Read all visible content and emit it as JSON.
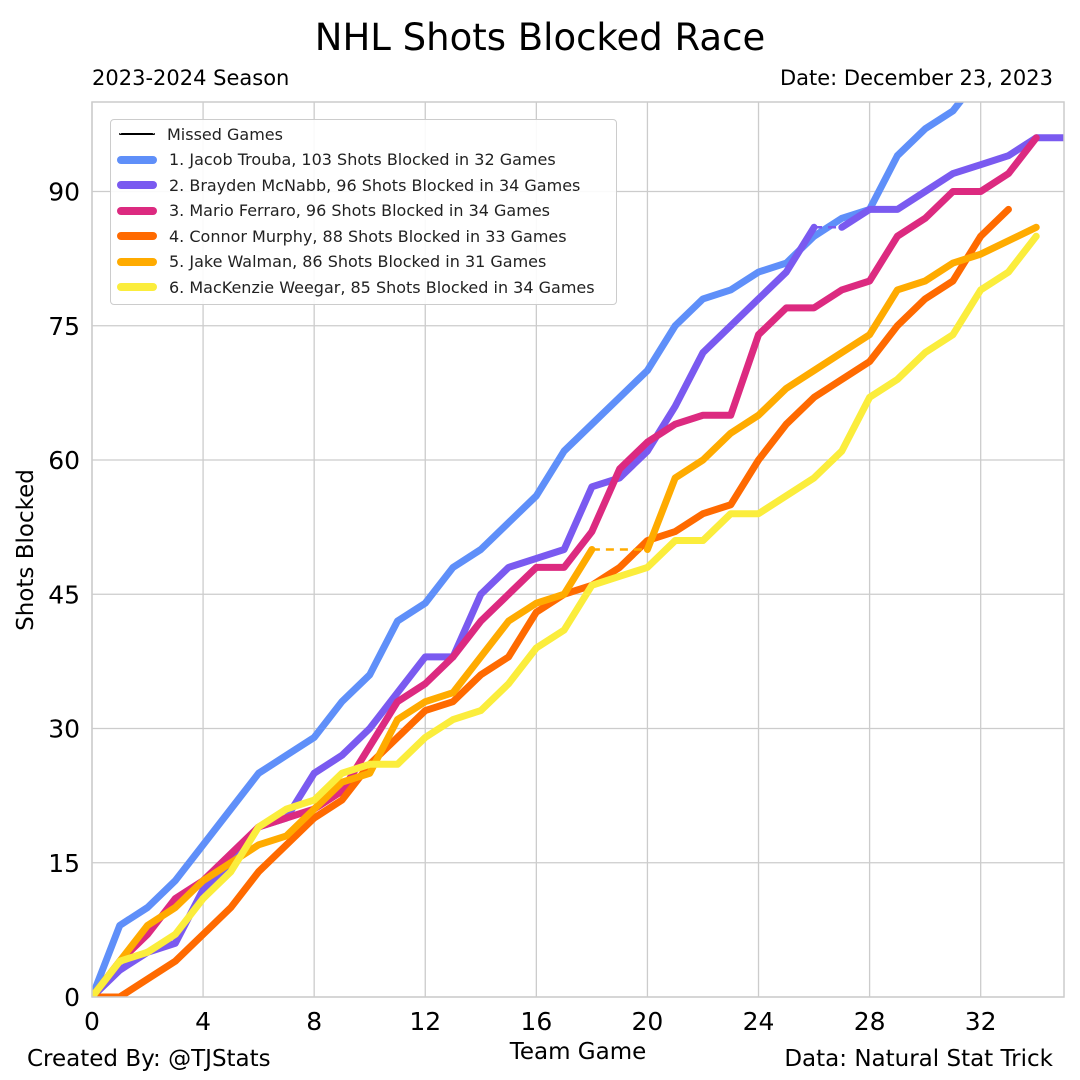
{
  "header": {
    "title": "NHL Shots Blocked Race",
    "season": "2023-2024 Season",
    "date": "Date: December 23, 2023"
  },
  "footer": {
    "credit": "Created By: @TJStats",
    "source": "Data: Natural Stat Trick"
  },
  "chart_data": {
    "type": "line",
    "title": "NHL Shots Blocked Race",
    "subtitle": "2023-2024 Season",
    "xlabel": "Team Game",
    "ylabel": "Shots Blocked",
    "xlim": [
      0,
      35
    ],
    "ylim": [
      0,
      100
    ],
    "xticks": [
      0,
      4,
      8,
      12,
      16,
      20,
      24,
      28,
      32
    ],
    "yticks": [
      0,
      15,
      30,
      45,
      60,
      75,
      90
    ],
    "grid": true,
    "legend_position": "top-left",
    "legend_missed_label": "Missed Games",
    "series": [
      {
        "name": "1. Jacob Trouba, 103 Shots Blocked in 32 Games",
        "color": "#5f8ff9",
        "x": [
          0,
          1,
          2,
          3,
          4,
          5,
          6,
          7,
          8,
          9,
          10,
          11,
          12,
          13,
          14,
          15,
          16,
          17,
          18,
          19,
          20,
          21,
          22,
          23,
          24,
          25,
          26,
          27,
          28,
          29,
          30,
          31,
          32
        ],
        "y": [
          0,
          8,
          10,
          13,
          17,
          21,
          25,
          27,
          29,
          33,
          36,
          42,
          44,
          48,
          50,
          53,
          56,
          61,
          64,
          67,
          70,
          75,
          78,
          79,
          81,
          82,
          85,
          87,
          88,
          94,
          97,
          99,
          103
        ],
        "missed": []
      },
      {
        "name": "2. Brayden McNabb, 96 Shots Blocked in 34 Games",
        "color": "#7a5af0",
        "x": [
          0,
          1,
          2,
          3,
          4,
          5,
          6,
          7,
          8,
          9,
          10,
          11,
          12,
          13,
          14,
          15,
          16,
          17,
          18,
          19,
          20,
          21,
          22,
          23,
          24,
          25,
          26,
          27,
          28,
          29,
          30,
          31,
          32,
          33,
          34,
          35
        ],
        "y": [
          0,
          3,
          5,
          6,
          12,
          15,
          19,
          20,
          25,
          27,
          30,
          34,
          38,
          38,
          45,
          48,
          49,
          50,
          57,
          58,
          61,
          66,
          72,
          75,
          78,
          81,
          86,
          86,
          88,
          88,
          90,
          92,
          93,
          94,
          96,
          96
        ],
        "missed": [
          [
            26,
            27
          ]
        ]
      },
      {
        "name": "3. Mario Ferraro, 96 Shots Blocked in 34 Games",
        "color": "#dc2a80",
        "x": [
          0,
          1,
          2,
          3,
          4,
          5,
          6,
          7,
          8,
          9,
          10,
          11,
          12,
          13,
          14,
          15,
          16,
          17,
          18,
          19,
          20,
          21,
          22,
          23,
          24,
          25,
          26,
          27,
          28,
          29,
          30,
          31,
          32,
          33,
          34
        ],
        "y": [
          0,
          4,
          7,
          11,
          13,
          16,
          19,
          20,
          21,
          23,
          28,
          33,
          35,
          38,
          42,
          45,
          48,
          48,
          52,
          59,
          62,
          64,
          65,
          65,
          74,
          77,
          77,
          79,
          80,
          85,
          87,
          90,
          90,
          92,
          96
        ],
        "missed": []
      },
      {
        "name": "4. Connor Murphy, 88 Shots Blocked in 33 Games",
        "color": "#ff6a00",
        "x": [
          0,
          1,
          2,
          3,
          4,
          5,
          6,
          7,
          8,
          9,
          10,
          11,
          12,
          13,
          14,
          15,
          16,
          17,
          18,
          19,
          20,
          21,
          22,
          23,
          24,
          25,
          26,
          27,
          28,
          29,
          30,
          31,
          32,
          33
        ],
        "y": [
          0,
          0,
          2,
          4,
          7,
          10,
          14,
          17,
          20,
          22,
          26,
          29,
          32,
          33,
          36,
          38,
          43,
          45,
          46,
          48,
          51,
          52,
          54,
          55,
          60,
          64,
          67,
          69,
          71,
          75,
          78,
          80,
          85,
          88
        ],
        "missed": []
      },
      {
        "name": "5. Jake Walman, 86 Shots Blocked in 31 Games",
        "color": "#ffab00",
        "x": [
          0,
          1,
          2,
          3,
          4,
          5,
          6,
          7,
          8,
          9,
          10,
          11,
          12,
          13,
          14,
          15,
          16,
          17,
          18,
          20,
          21,
          22,
          23,
          24,
          25,
          26,
          27,
          28,
          29,
          30,
          31,
          32,
          34
        ],
        "y": [
          0,
          4,
          8,
          10,
          13,
          15,
          17,
          18,
          21,
          24,
          25,
          31,
          33,
          34,
          38,
          42,
          44,
          45,
          50,
          50,
          58,
          60,
          63,
          65,
          68,
          70,
          72,
          74,
          79,
          80,
          82,
          83,
          86
        ],
        "missed": [
          [
            18,
            20
          ],
          [
            32,
            33
          ]
        ],
        "y_missed_end": [
          83
        ]
      },
      {
        "name": "6. MacKenzie Weegar, 85 Shots Blocked in 34 Games",
        "color": "#fbed3c",
        "x": [
          0,
          1,
          2,
          3,
          4,
          5,
          6,
          7,
          8,
          9,
          10,
          11,
          12,
          13,
          14,
          15,
          16,
          17,
          18,
          19,
          20,
          21,
          22,
          23,
          24,
          25,
          26,
          27,
          28,
          29,
          30,
          31,
          32,
          33,
          34
        ],
        "y": [
          0,
          4,
          5,
          7,
          11,
          14,
          19,
          21,
          22,
          25,
          26,
          26,
          29,
          31,
          32,
          35,
          39,
          41,
          46,
          47,
          48,
          51,
          51,
          54,
          54,
          56,
          58,
          61,
          67,
          69,
          72,
          74,
          79,
          81,
          85
        ],
        "missed": []
      }
    ]
  }
}
